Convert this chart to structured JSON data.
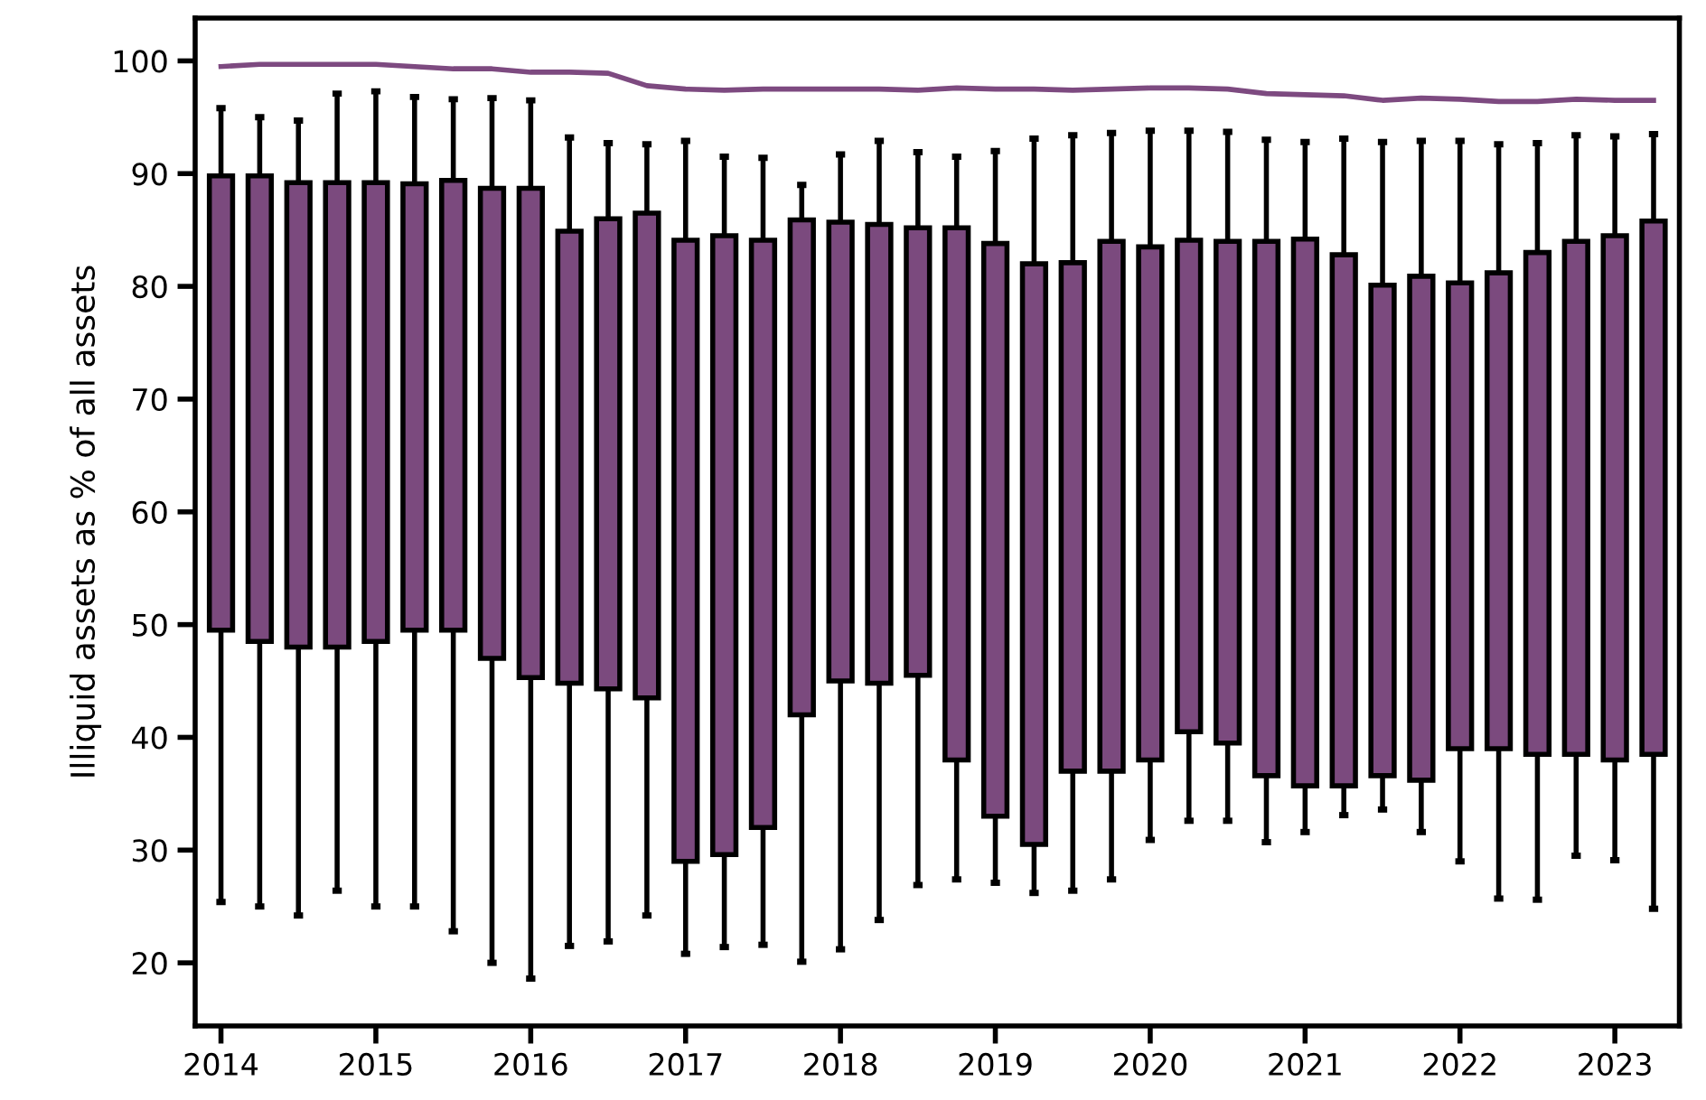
{
  "chart_data": {
    "type": "box",
    "ylabel": "Illiquid assets as % of all assets",
    "x": [
      "2014-01",
      "2014-04",
      "2014-07",
      "2014-10",
      "2015-01",
      "2015-04",
      "2015-07",
      "2015-10",
      "2016-01",
      "2016-04",
      "2016-07",
      "2016-10",
      "2017-01",
      "2017-04",
      "2017-07",
      "2017-10",
      "2018-01",
      "2018-04",
      "2018-07",
      "2018-10",
      "2019-01",
      "2019-04",
      "2019-07",
      "2019-10",
      "2020-01",
      "2020-04",
      "2020-07",
      "2020-10",
      "2021-01",
      "2021-04",
      "2021-07",
      "2021-10",
      "2022-01",
      "2022-04",
      "2022-07",
      "2022-10",
      "2023-01",
      "2023-04"
    ],
    "series": [
      {
        "color": "#7b4a7e",
        "boxes": [
          {
            "low": 25.4,
            "q1": 49.5,
            "q3": 89.8,
            "high": 95.8
          },
          {
            "low": 25,
            "q1": 48.5,
            "q3": 89.8,
            "high": 95
          },
          {
            "low": 24.2,
            "q1": 48,
            "q3": 89.2,
            "high": 94.7
          },
          {
            "low": 26.4,
            "q1": 48,
            "q3": 89.2,
            "high": 97.1
          },
          {
            "low": 25,
            "q1": 48.5,
            "q3": 89.2,
            "high": 97.3
          },
          {
            "low": 25,
            "q1": 49.5,
            "q3": 89.1,
            "high": 96.8
          },
          {
            "low": 22.8,
            "q1": 49.5,
            "q3": 89.4,
            "high": 96.6
          },
          {
            "low": 20,
            "q1": 47,
            "q3": 88.7,
            "high": 96.7
          },
          {
            "low": 18.6,
            "q1": 45.3,
            "q3": 88.7,
            "high": 96.5
          },
          {
            "low": 21.5,
            "q1": 44.8,
            "q3": 84.9,
            "high": 93.2
          },
          {
            "low": 21.9,
            "q1": 44.3,
            "q3": 86,
            "high": 92.7
          },
          {
            "low": 24.2,
            "q1": 43.5,
            "q3": 86.5,
            "high": 92.6
          },
          {
            "low": 20.8,
            "q1": 29,
            "q3": 84.1,
            "high": 92.9
          },
          {
            "low": 21.4,
            "q1": 29.6,
            "q3": 84.5,
            "high": 91.5
          },
          {
            "low": 21.6,
            "q1": 32,
            "q3": 84.1,
            "high": 91.4
          },
          {
            "low": 20.1,
            "q1": 42,
            "q3": 85.9,
            "high": 89
          },
          {
            "low": 21.2,
            "q1": 45,
            "q3": 85.7,
            "high": 91.7
          },
          {
            "low": 23.8,
            "q1": 44.8,
            "q3": 85.5,
            "high": 92.9
          },
          {
            "low": 26.9,
            "q1": 45.5,
            "q3": 85.2,
            "high": 91.9
          },
          {
            "low": 27.4,
            "q1": 38,
            "q3": 85.2,
            "high": 91.5
          },
          {
            "low": 27.1,
            "q1": 33,
            "q3": 83.8,
            "high": 92
          },
          {
            "low": 26.2,
            "q1": 30.5,
            "q3": 82,
            "high": 93.1
          },
          {
            "low": 26.4,
            "q1": 37,
            "q3": 82.1,
            "high": 93.4
          },
          {
            "low": 27.4,
            "q1": 37,
            "q3": 84,
            "high": 93.6
          },
          {
            "low": 30.9,
            "q1": 38,
            "q3": 83.5,
            "high": 93.8
          },
          {
            "low": 32.6,
            "q1": 40.5,
            "q3": 84.1,
            "high": 93.8
          },
          {
            "low": 32.6,
            "q1": 39.5,
            "q3": 84,
            "high": 93.7
          },
          {
            "low": 30.7,
            "q1": 36.6,
            "q3": 84,
            "high": 93
          },
          {
            "low": 31.6,
            "q1": 35.7,
            "q3": 84.2,
            "high": 92.8
          },
          {
            "low": 33.1,
            "q1": 35.7,
            "q3": 82.8,
            "high": 93.1
          },
          {
            "low": 33.6,
            "q1": 36.6,
            "q3": 80.1,
            "high": 92.8
          },
          {
            "low": 31.6,
            "q1": 36.2,
            "q3": 80.9,
            "high": 92.9
          },
          {
            "low": 29,
            "q1": 39,
            "q3": 80.3,
            "high": 92.9
          },
          {
            "low": 25.7,
            "q1": 39,
            "q3": 81.2,
            "high": 92.6
          },
          {
            "low": 25.6,
            "q1": 38.5,
            "q3": 83,
            "high": 92.7
          },
          {
            "low": 29.5,
            "q1": 38.5,
            "q3": 84,
            "high": 93.4
          },
          {
            "low": 29.1,
            "q1": 38,
            "q3": 84.5,
            "high": 93.3
          },
          {
            "low": 24.8,
            "q1": 38.5,
            "q3": 85.8,
            "high": 93.5
          }
        ]
      },
      {
        "type": "line",
        "color": "#7d4a80",
        "values": [
          99.5,
          99.7,
          99.7,
          99.7,
          99.7,
          99.5,
          99.3,
          99.3,
          99.0,
          99.0,
          98.9,
          97.8,
          97.5,
          97.4,
          97.5,
          97.5,
          97.5,
          97.5,
          97.4,
          97.6,
          97.5,
          97.5,
          97.4,
          97.5,
          97.6,
          97.6,
          97.5,
          97.1,
          97.0,
          96.9,
          96.5,
          96.7,
          96.6,
          96.4,
          96.4,
          96.6,
          96.5,
          96.5
        ]
      }
    ],
    "xlim": [
      "2013-11",
      "2023-06"
    ],
    "xticks": [
      {
        "value": "2014-01",
        "label": "2014"
      },
      {
        "value": "2015-01",
        "label": "2015"
      },
      {
        "value": "2016-01",
        "label": "2016"
      },
      {
        "value": "2017-01",
        "label": "2017"
      },
      {
        "value": "2018-01",
        "label": "2018"
      },
      {
        "value": "2019-01",
        "label": "2019"
      },
      {
        "value": "2020-01",
        "label": "2020"
      },
      {
        "value": "2021-01",
        "label": "2021"
      },
      {
        "value": "2022-01",
        "label": "2022"
      },
      {
        "value": "2023-01",
        "label": "2023"
      }
    ],
    "ylim": [
      14.4,
      103.8
    ],
    "yticks": [
      20,
      30,
      40,
      50,
      60,
      70,
      80,
      90,
      100
    ],
    "grid": false
  }
}
